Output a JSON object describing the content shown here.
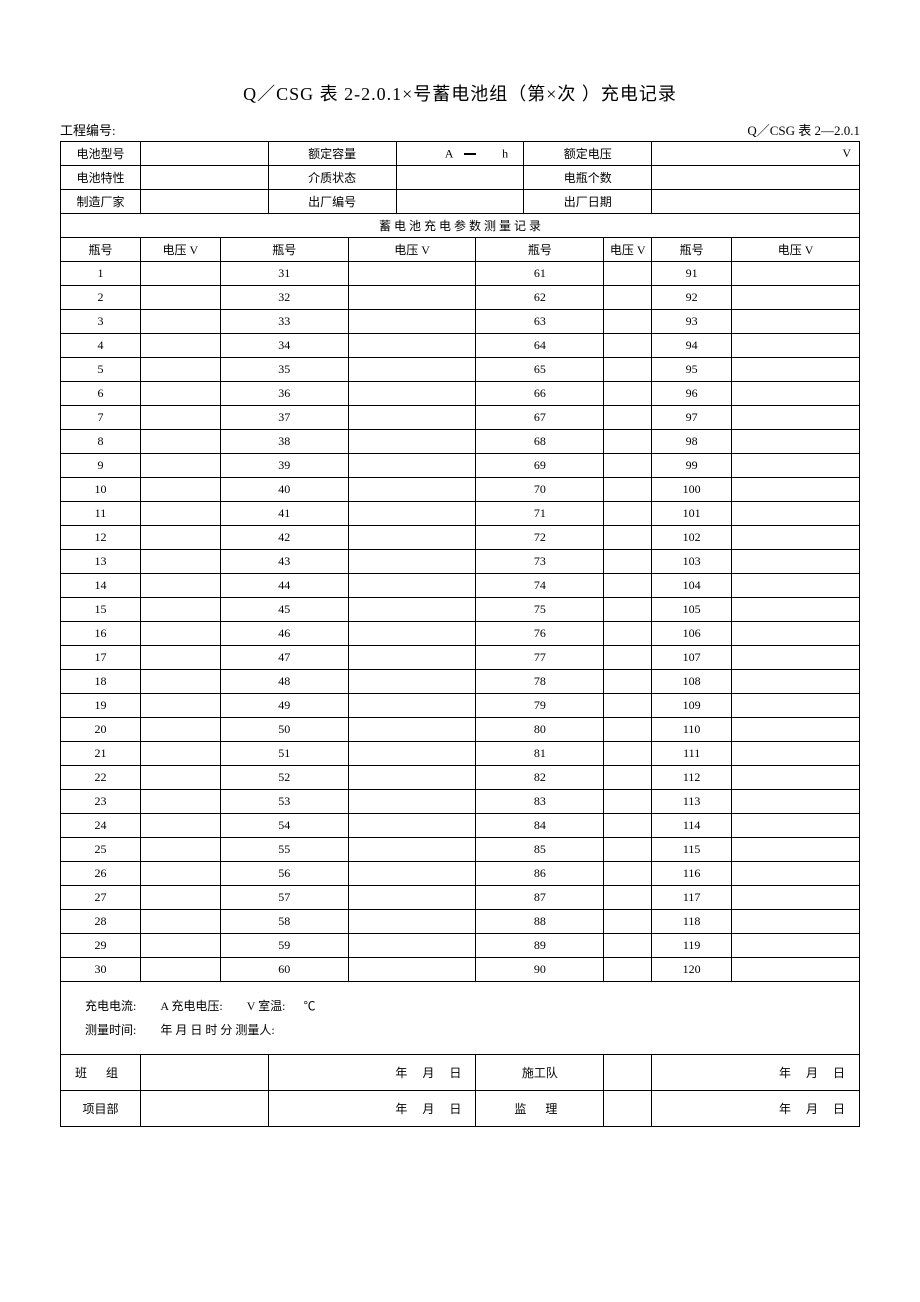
{
  "title": "Q／CSG 表 2-2.0.1×号蓄电池组（第×次 ）充电记录",
  "header": {
    "project_label": "工程编号:",
    "right_code": "Q／CSG 表 2—2.0.1"
  },
  "info": {
    "r1c1": "电池型号",
    "r1c2": "额定容量",
    "r1c3": "额定电压",
    "r2c1": "电池特性",
    "r2c2": "介质状态",
    "r2c3": "电瓶个数",
    "r3c1": "制造厂家",
    "r3c2": "出厂编号",
    "r3c3": "出厂日期",
    "cap_a": "A",
    "cap_h": "h",
    "volt_unit": "V"
  },
  "section_header": "蓄    电    池    充    电    参    数    测    量    记    录",
  "cols": {
    "bottle": "瓶号",
    "volt": "电压 V"
  },
  "rows": 30,
  "offsets": [
    1,
    31,
    61,
    91
  ],
  "notes": {
    "line1_a": "充电电流:",
    "line1_b": "A    充电电压:",
    "line1_c": "V    室温:",
    "line1_d": "℃",
    "line2_a": "测量时间:",
    "line2_b": "年   月   日   时   分    测量人:"
  },
  "sig": {
    "team": "班   组",
    "crew": "施工队",
    "proj": "项目部",
    "sup": "监   理",
    "date": "年   月   日"
  }
}
